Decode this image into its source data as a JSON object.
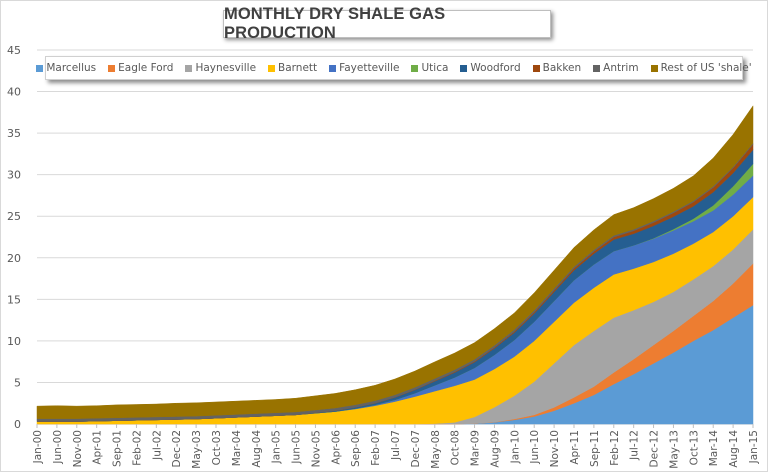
{
  "chart_data": {
    "type": "area",
    "stacked": true,
    "title": "MONTHLY DRY SHALE GAS PRODUCTION",
    "xlabel": "",
    "ylabel": "",
    "ylim": [
      0,
      45
    ],
    "yticks": [
      0,
      5,
      10,
      15,
      20,
      25,
      30,
      35,
      40,
      45
    ],
    "grid": true,
    "legend_position": "top",
    "categories": [
      "Jan-00",
      "Jun-00",
      "Nov-00",
      "Apr-01",
      "Sep-01",
      "Feb-02",
      "Jul-02",
      "Dec-02",
      "May-03",
      "Oct-03",
      "Mar-04",
      "Aug-04",
      "Jan-05",
      "Jun-05",
      "Nov-05",
      "Apr-06",
      "Sep-06",
      "Feb-07",
      "Jul-07",
      "Dec-07",
      "May-08",
      "Oct-08",
      "Mar-09",
      "Aug-09",
      "Jan-10",
      "Jun-10",
      "Nov-10",
      "Apr-11",
      "Sep-11",
      "Feb-12",
      "Jul-12",
      "Dec-12",
      "May-13",
      "Oct-13",
      "Mar-14",
      "Aug-14",
      "Jan-15"
    ],
    "series": [
      {
        "name": "Marcellus",
        "color": "#5B9BD5",
        "values": [
          0,
          0,
          0,
          0,
          0,
          0,
          0,
          0,
          0,
          0,
          0,
          0,
          0,
          0,
          0,
          0,
          0,
          0,
          0,
          0,
          0,
          0,
          0.05,
          0.2,
          0.5,
          0.9,
          1.6,
          2.5,
          3.5,
          4.8,
          6.0,
          7.3,
          8.6,
          10.0,
          11.3,
          12.8,
          14.3
        ]
      },
      {
        "name": "Eagle Ford",
        "color": "#ED7D31",
        "values": [
          0,
          0,
          0,
          0,
          0,
          0,
          0,
          0,
          0,
          0,
          0,
          0,
          0,
          0,
          0,
          0,
          0,
          0,
          0,
          0,
          0,
          0,
          0,
          0.02,
          0.1,
          0.2,
          0.4,
          0.7,
          1.0,
          1.4,
          1.8,
          2.2,
          2.6,
          3.0,
          3.5,
          4.1,
          5.0
        ]
      },
      {
        "name": "Haynesville",
        "color": "#A5A5A5",
        "values": [
          0,
          0,
          0,
          0,
          0,
          0,
          0,
          0,
          0,
          0,
          0,
          0,
          0,
          0,
          0,
          0,
          0,
          0,
          0,
          0,
          0.05,
          0.2,
          0.8,
          1.8,
          2.8,
          4.0,
          5.3,
          6.3,
          6.7,
          6.6,
          5.9,
          5.2,
          4.7,
          4.4,
          4.2,
          4.1,
          4.1
        ]
      },
      {
        "name": "Barnett",
        "color": "#FFC000",
        "values": [
          0.3,
          0.3,
          0.3,
          0.35,
          0.4,
          0.45,
          0.5,
          0.55,
          0.6,
          0.7,
          0.8,
          0.9,
          1.0,
          1.1,
          1.3,
          1.5,
          1.8,
          2.2,
          2.7,
          3.3,
          3.9,
          4.4,
          4.5,
          4.6,
          4.7,
          4.9,
          5.0,
          5.1,
          5.2,
          5.2,
          5.0,
          4.8,
          4.6,
          4.3,
          4.1,
          4.0,
          3.9
        ]
      },
      {
        "name": "Fayetteville",
        "color": "#4472C4",
        "values": [
          0,
          0,
          0,
          0,
          0,
          0,
          0,
          0,
          0,
          0,
          0,
          0,
          0,
          0,
          0,
          0,
          0.05,
          0.1,
          0.2,
          0.4,
          0.7,
          1.0,
          1.4,
          1.7,
          2.0,
          2.3,
          2.5,
          2.7,
          2.8,
          2.8,
          2.8,
          2.8,
          2.8,
          2.7,
          2.6,
          2.6,
          2.6
        ]
      },
      {
        "name": "Utica",
        "color": "#70AD47",
        "values": [
          0,
          0,
          0,
          0,
          0,
          0,
          0,
          0,
          0,
          0,
          0,
          0,
          0,
          0,
          0,
          0,
          0,
          0,
          0,
          0,
          0,
          0,
          0,
          0,
          0,
          0,
          0,
          0,
          0,
          0,
          0,
          0.05,
          0.15,
          0.3,
          0.6,
          1.0,
          1.4
        ]
      },
      {
        "name": "Woodford",
        "color": "#255E91",
        "values": [
          0,
          0,
          0,
          0,
          0,
          0,
          0,
          0,
          0,
          0,
          0,
          0,
          0,
          0,
          0.05,
          0.1,
          0.15,
          0.2,
          0.3,
          0.4,
          0.5,
          0.6,
          0.7,
          0.8,
          0.9,
          1.0,
          1.1,
          1.2,
          1.3,
          1.4,
          1.4,
          1.5,
          1.5,
          1.5,
          1.6,
          1.6,
          1.7
        ]
      },
      {
        "name": "Bakken",
        "color": "#9E480E",
        "values": [
          0,
          0,
          0,
          0,
          0,
          0,
          0,
          0,
          0,
          0,
          0,
          0,
          0,
          0,
          0,
          0,
          0,
          0,
          0.02,
          0.03,
          0.05,
          0.07,
          0.08,
          0.1,
          0.12,
          0.15,
          0.18,
          0.22,
          0.26,
          0.3,
          0.35,
          0.4,
          0.45,
          0.5,
          0.55,
          0.6,
          0.65
        ]
      },
      {
        "name": "Antrim",
        "color": "#636363",
        "values": [
          0.35,
          0.35,
          0.35,
          0.35,
          0.35,
          0.35,
          0.35,
          0.35,
          0.35,
          0.35,
          0.35,
          0.35,
          0.35,
          0.35,
          0.34,
          0.33,
          0.32,
          0.31,
          0.3,
          0.29,
          0.28,
          0.27,
          0.26,
          0.25,
          0.24,
          0.23,
          0.22,
          0.21,
          0.2,
          0.19,
          0.18,
          0.17,
          0.16,
          0.15,
          0.15,
          0.14,
          0.13
        ]
      },
      {
        "name": "Rest of US 'shale'",
        "color": "#997300",
        "values": [
          1.5,
          1.55,
          1.5,
          1.5,
          1.55,
          1.55,
          1.55,
          1.6,
          1.6,
          1.6,
          1.6,
          1.6,
          1.6,
          1.65,
          1.7,
          1.75,
          1.8,
          1.85,
          1.9,
          1.95,
          2.0,
          2.0,
          2.0,
          2.0,
          2.0,
          2.1,
          2.2,
          2.3,
          2.4,
          2.5,
          2.6,
          2.7,
          2.8,
          3.0,
          3.4,
          3.9,
          4.5
        ]
      }
    ]
  }
}
